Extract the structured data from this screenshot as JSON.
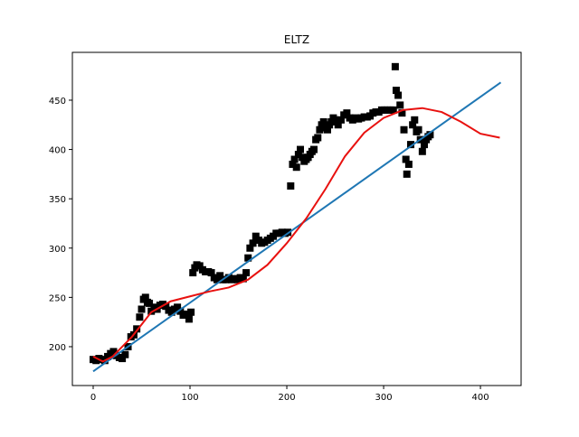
{
  "chart_data": {
    "type": "scatter",
    "title": "ELTZ",
    "xlim": [
      -21.5,
      442
    ],
    "ylim": [
      160.6,
      498.5
    ],
    "xticks": [
      0,
      100,
      200,
      300,
      400
    ],
    "yticks": [
      200,
      250,
      300,
      350,
      400,
      450
    ],
    "series": [
      {
        "type": "scatter",
        "color": "#000000",
        "x": [
          0,
          3,
          6,
          9,
          12,
          15,
          18,
          21,
          24,
          27,
          30,
          33,
          36,
          39,
          42,
          45,
          48,
          50,
          52,
          54,
          56,
          58,
          60,
          63,
          66,
          69,
          72,
          75,
          78,
          81,
          84,
          87,
          90,
          93,
          96,
          99,
          101,
          103,
          105,
          107,
          110,
          113,
          116,
          119,
          122,
          125,
          128,
          131,
          134,
          137,
          140,
          143,
          146,
          149,
          152,
          155,
          158,
          160,
          162,
          165,
          168,
          171,
          174,
          177,
          180,
          183,
          186,
          189,
          192,
          195,
          198,
          201,
          204,
          206,
          208,
          210,
          212,
          214,
          216,
          218,
          220,
          222,
          224,
          226,
          228,
          230,
          232,
          234,
          236,
          238,
          240,
          242,
          244,
          246,
          248,
          250,
          253,
          256,
          259,
          262,
          265,
          268,
          271,
          274,
          277,
          280,
          283,
          286,
          289,
          292,
          295,
          298,
          301,
          304,
          307,
          310,
          312,
          313,
          315,
          317,
          319,
          321,
          323,
          324,
          326,
          328,
          330,
          332,
          334,
          336,
          338,
          340,
          342,
          344,
          346,
          348
        ],
        "values": [
          187,
          186,
          188,
          187,
          186,
          190,
          193,
          195,
          191,
          189,
          188,
          192,
          200,
          210,
          212,
          218,
          230,
          238,
          248,
          250,
          245,
          244,
          236,
          240,
          238,
          242,
          243,
          241,
          237,
          235,
          238,
          240,
          236,
          232,
          233,
          228,
          235,
          275,
          280,
          283,
          282,
          278,
          276,
          276,
          275,
          270,
          268,
          272,
          268,
          268,
          270,
          268,
          269,
          268,
          270,
          269,
          275,
          290,
          300,
          305,
          312,
          308,
          305,
          306,
          308,
          310,
          312,
          315,
          315,
          316,
          315,
          316,
          363,
          385,
          390,
          382,
          395,
          400,
          392,
          388,
          390,
          392,
          395,
          398,
          400,
          410,
          412,
          420,
          425,
          428,
          422,
          420,
          425,
          428,
          432,
          430,
          425,
          430,
          435,
          437,
          432,
          430,
          432,
          431,
          432,
          433,
          433,
          434,
          437,
          438,
          438,
          440,
          440,
          440,
          440,
          440,
          484,
          460,
          455,
          445,
          437,
          420,
          390,
          375,
          385,
          405,
          425,
          430,
          418,
          420,
          410,
          398,
          405,
          410,
          413,
          415
        ]
      },
      {
        "type": "line",
        "color": "#1f77b4",
        "x": [
          0,
          421
        ],
        "values": [
          175,
          468
        ]
      },
      {
        "type": "line",
        "color": "#e8110f",
        "x": [
          0,
          10,
          20,
          40,
          60,
          80,
          100,
          120,
          140,
          160,
          180,
          200,
          220,
          240,
          260,
          280,
          300,
          320,
          340,
          360,
          380,
          400,
          420
        ],
        "values": [
          190,
          185,
          190,
          210,
          235,
          246,
          251,
          256,
          260,
          268,
          283,
          305,
          330,
          360,
          393,
          417,
          432,
          440,
          442,
          438,
          428,
          416,
          412
        ]
      }
    ]
  }
}
